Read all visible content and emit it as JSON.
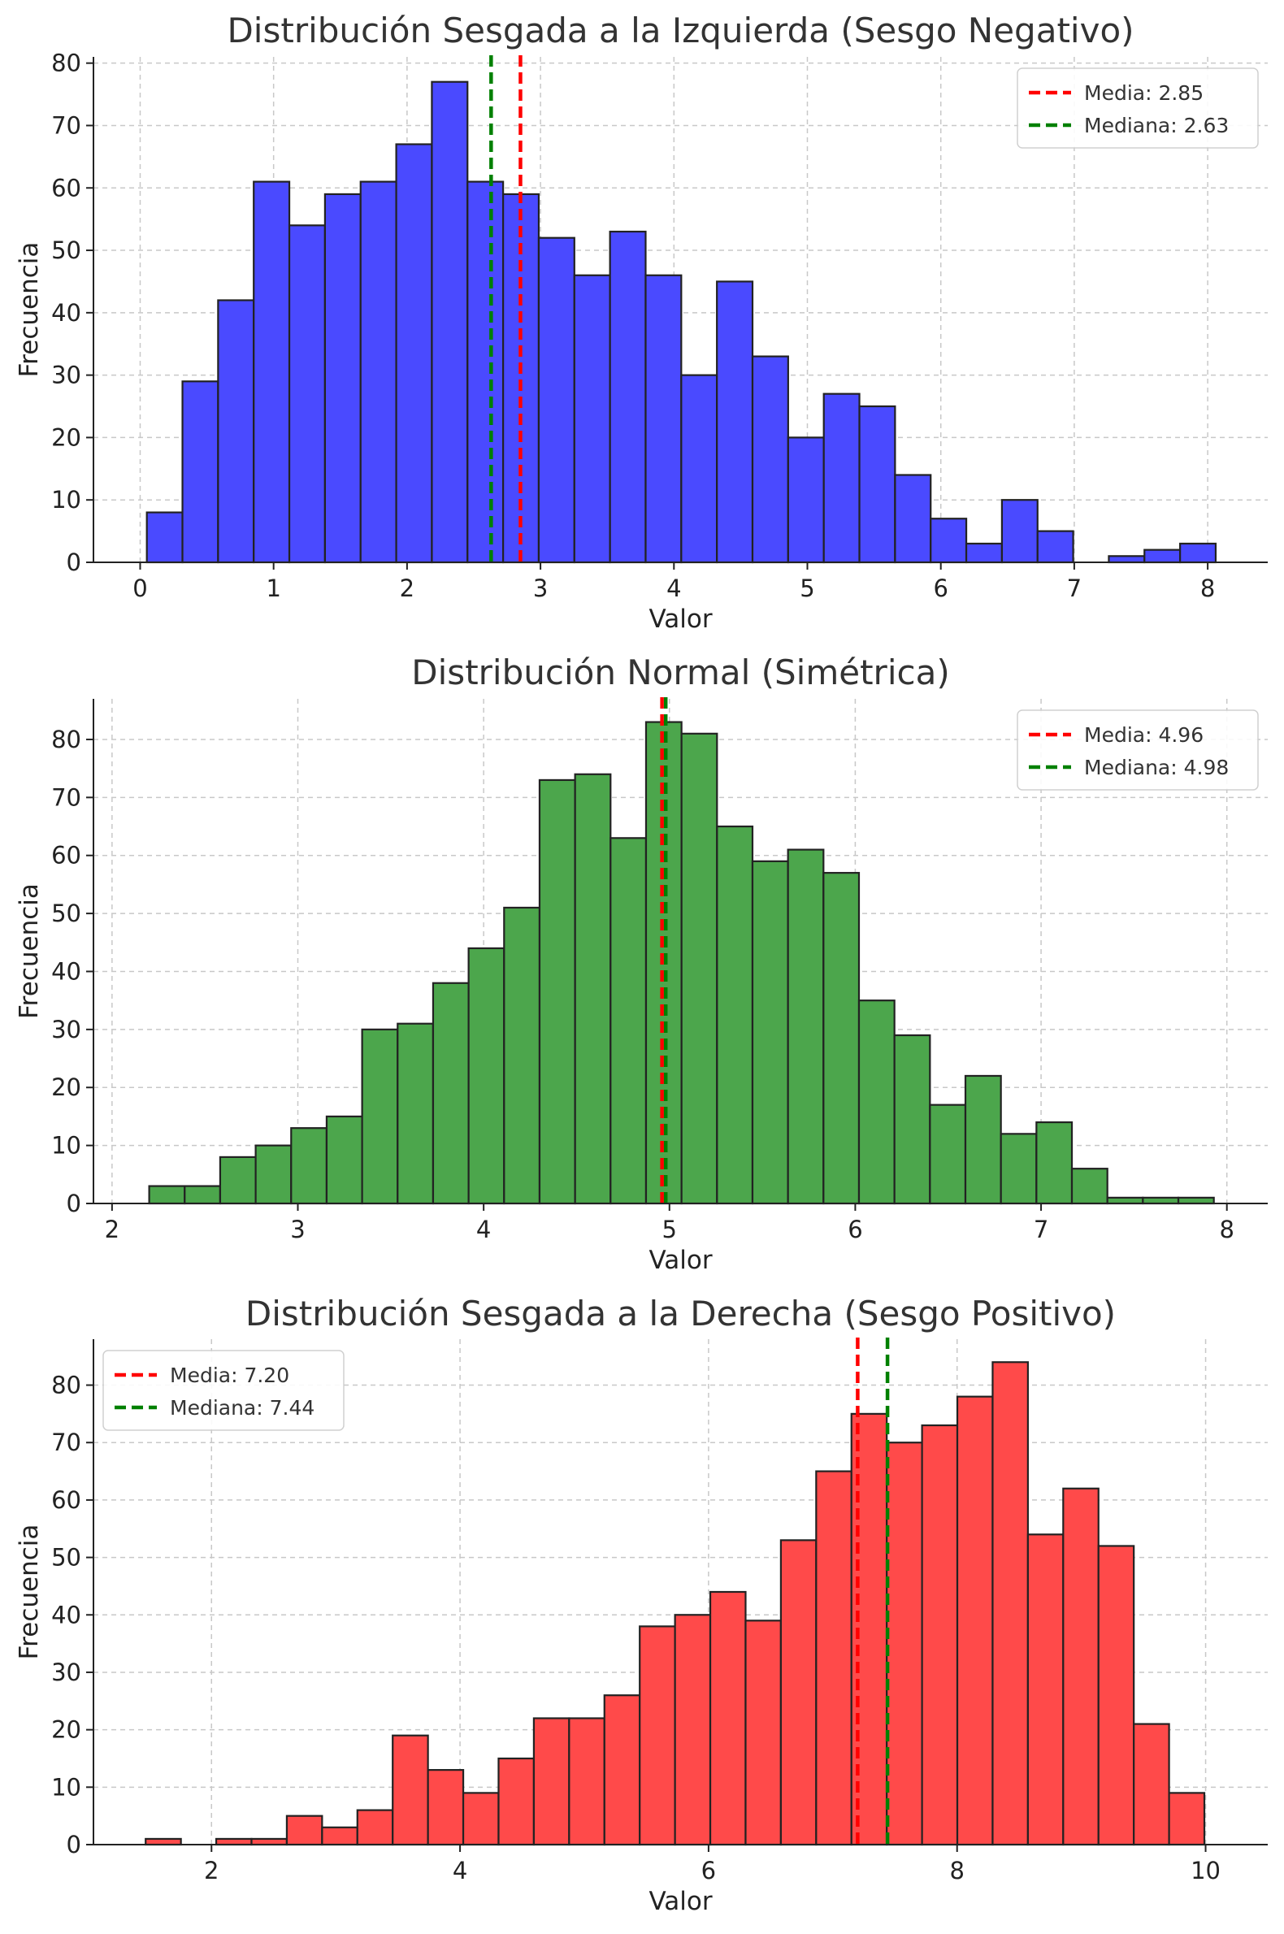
{
  "chart_data": [
    {
      "type": "bar",
      "title": "Distribución Sesgada a la Izquierda (Sesgo Negativo)",
      "xlabel": "Valor",
      "ylabel": "Frecuencia",
      "bar_color": "#4a4aff",
      "bin_start": 0.05,
      "bin_width": 0.267,
      "values": [
        8,
        29,
        42,
        61,
        54,
        59,
        61,
        67,
        77,
        61,
        59,
        52,
        46,
        53,
        46,
        30,
        45,
        33,
        20,
        27,
        25,
        14,
        7,
        3,
        10,
        5,
        0,
        1,
        2,
        3
      ],
      "xlim": [
        -0.35,
        8.45
      ],
      "ylim": [
        0,
        81
      ],
      "xticks": [
        0,
        1,
        2,
        3,
        4,
        5,
        6,
        7,
        8
      ],
      "yticks": [
        0,
        10,
        20,
        30,
        40,
        50,
        60,
        70,
        80
      ],
      "lines": [
        {
          "name": "Media: 2.85",
          "x": 2.85,
          "color": "#ff0000"
        },
        {
          "name": "Mediana: 2.63",
          "x": 2.63,
          "color": "#008000"
        }
      ],
      "legend_position": "top-right",
      "grid": true
    },
    {
      "type": "bar",
      "title": "Distribución Normal (Simétrica)",
      "xlabel": "Valor",
      "ylabel": "Frecuencia",
      "bar_color": "#4ca64c",
      "bin_start": 2.2,
      "bin_width": 0.191,
      "values": [
        3,
        3,
        8,
        10,
        13,
        15,
        30,
        31,
        38,
        44,
        51,
        73,
        74,
        63,
        83,
        81,
        65,
        59,
        61,
        57,
        35,
        29,
        17,
        22,
        12,
        14,
        6,
        1,
        1,
        1
      ],
      "xlim": [
        1.9,
        8.22
      ],
      "ylim": [
        0,
        87
      ],
      "xticks": [
        2,
        3,
        4,
        5,
        6,
        7,
        8
      ],
      "yticks": [
        0,
        10,
        20,
        30,
        40,
        50,
        60,
        70,
        80
      ],
      "lines": [
        {
          "name": "Media: 4.96",
          "x": 4.96,
          "color": "#ff0000"
        },
        {
          "name": "Mediana: 4.98",
          "x": 4.98,
          "color": "#008000"
        }
      ],
      "legend_position": "top-right",
      "grid": true
    },
    {
      "type": "bar",
      "title": "Distribución Sesgada a la Derecha (Sesgo Positivo)",
      "xlabel": "Valor",
      "ylabel": "Frecuencia",
      "bar_color": "#ff4a4a",
      "bin_start": 1.47,
      "bin_width": 0.284,
      "values": [
        1,
        0,
        1,
        1,
        5,
        3,
        6,
        19,
        13,
        9,
        15,
        22,
        22,
        26,
        38,
        40,
        44,
        39,
        53,
        65,
        75,
        70,
        73,
        78,
        84,
        54,
        62,
        52,
        21,
        9
      ],
      "xlim": [
        1.05,
        10.5
      ],
      "ylim": [
        0,
        88
      ],
      "xticks": [
        2,
        4,
        6,
        8,
        10
      ],
      "yticks": [
        0,
        10,
        20,
        30,
        40,
        50,
        60,
        70,
        80
      ],
      "lines": [
        {
          "name": "Media: 7.20",
          "x": 7.2,
          "color": "#ff0000"
        },
        {
          "name": "Mediana: 7.44",
          "x": 7.44,
          "color": "#008000"
        }
      ],
      "legend_position": "top-left",
      "grid": true
    }
  ]
}
